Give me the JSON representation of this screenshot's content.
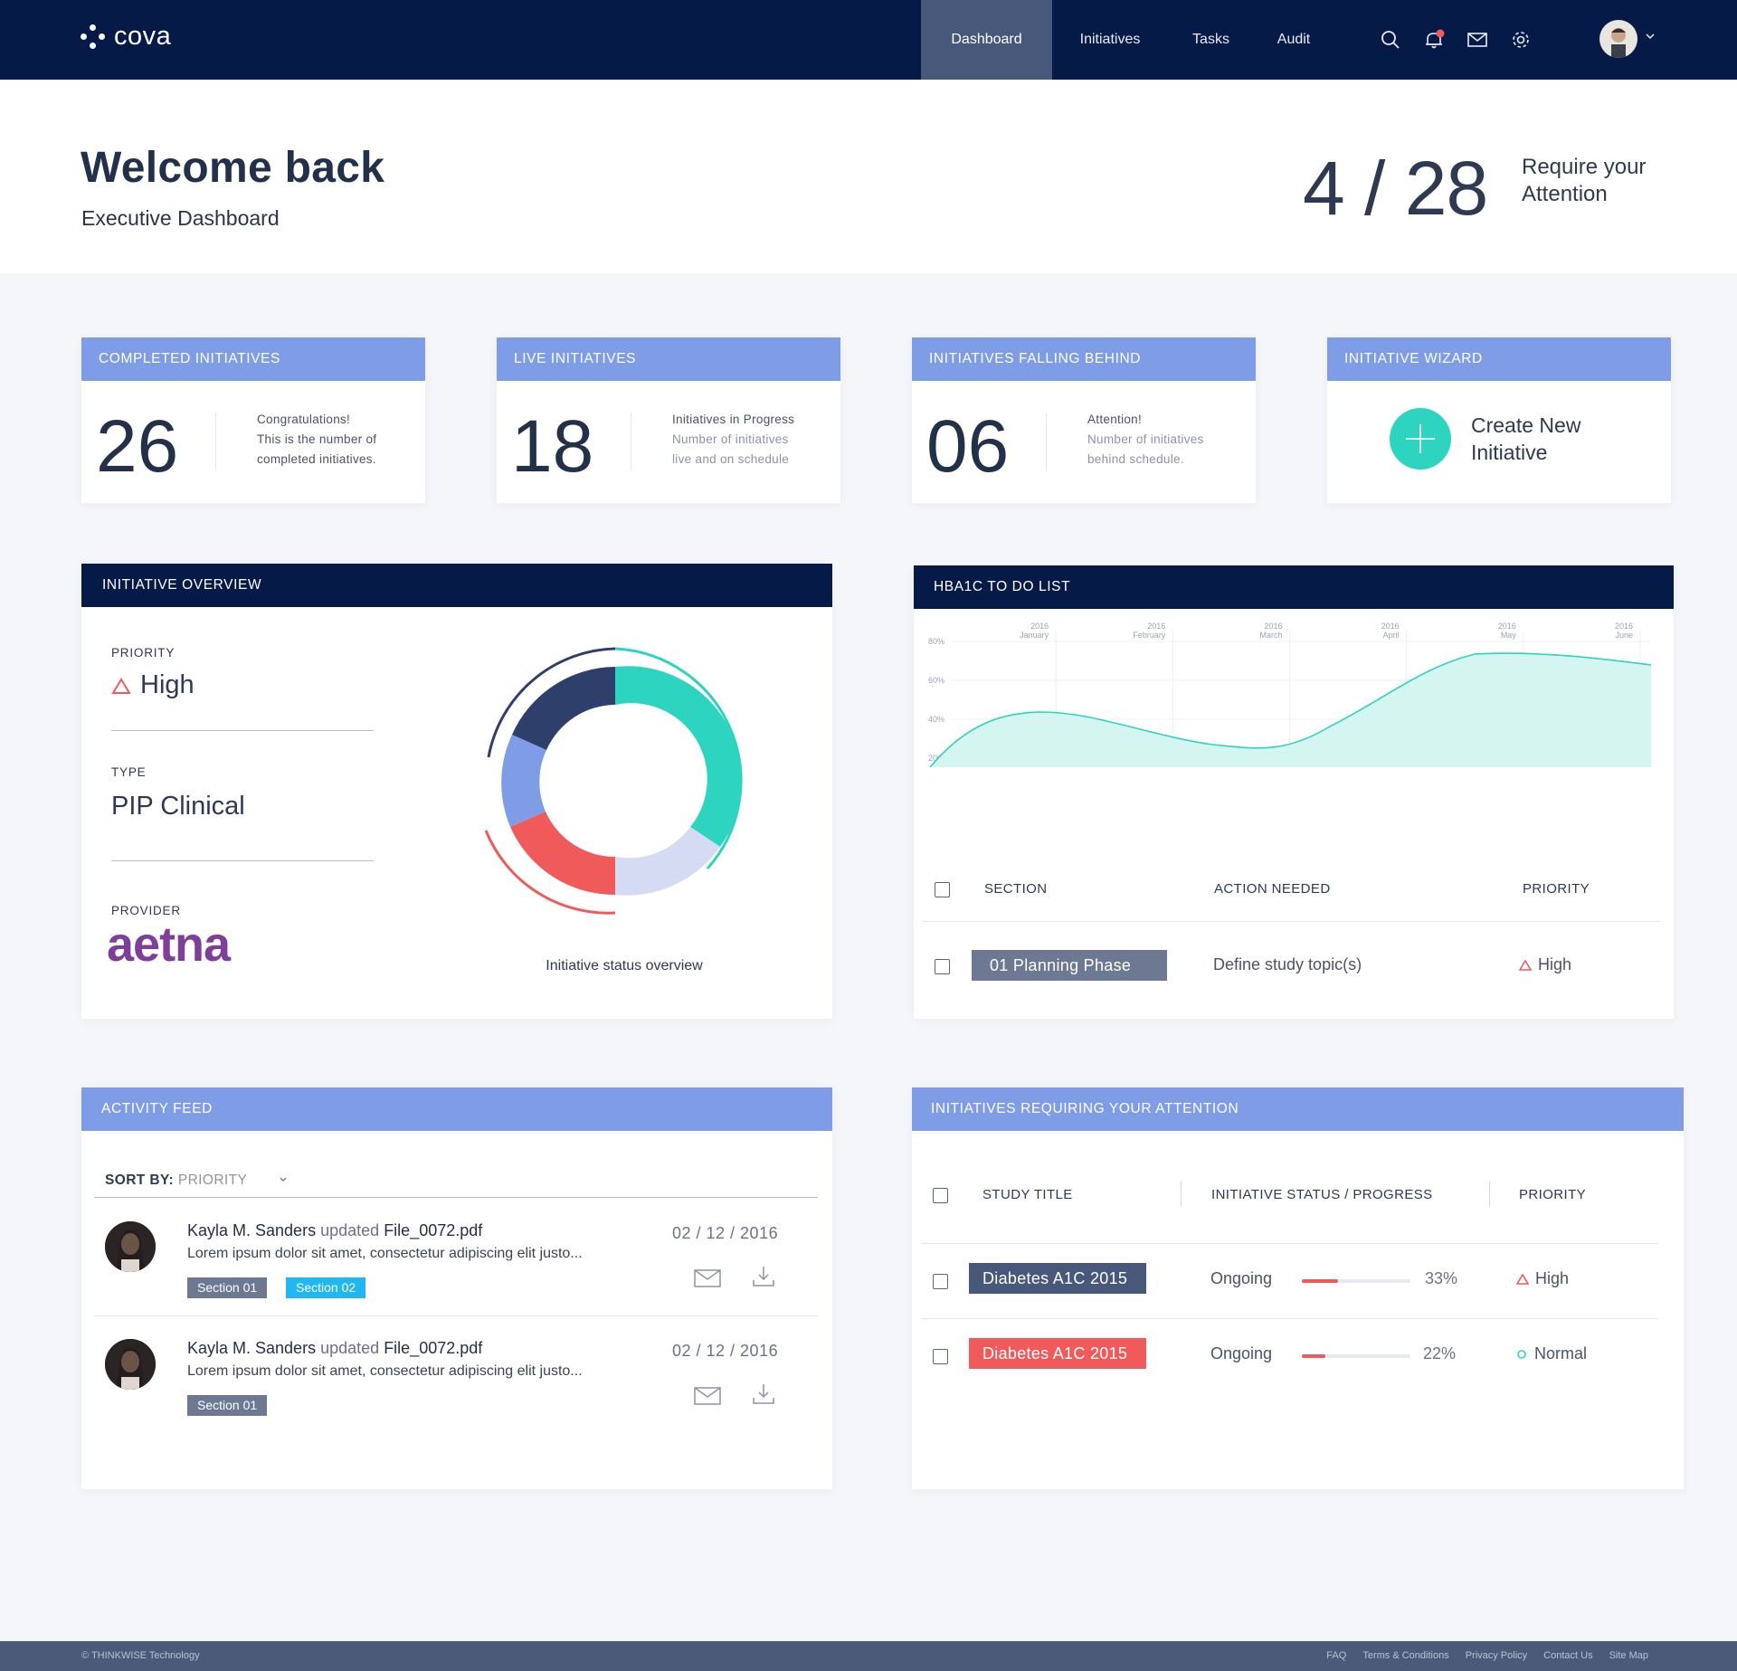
{
  "nav": {
    "brand": "cova",
    "links": [
      "Dashboard",
      "Initiatives",
      "Tasks",
      "Audit"
    ],
    "active": "Dashboard",
    "icons": [
      "search-icon",
      "bell-icon",
      "mail-icon",
      "gear-icon"
    ],
    "notification_color": "#f05a5a"
  },
  "hero": {
    "title": "Welcome back",
    "subtitle": "Executive Dashboard",
    "attention_count": "4 / 28",
    "attention_text": "Require your Attention"
  },
  "stats": [
    {
      "header": "COMPLETED INITIATIVES",
      "value": "26",
      "line1": "Congratulations!",
      "line2": "This is the number of",
      "line3": "completed initiatives."
    },
    {
      "header": "LIVE INITIATIVES",
      "value": "18",
      "line1": "Initiatives in Progress",
      "line2": "Number of initiatives",
      "line3": "live and on schedule"
    },
    {
      "header": "INITIATIVES FALLING BEHIND",
      "value": "06",
      "line1": "Attention!",
      "line2": "Number of initiatives",
      "line3": "behind schedule."
    }
  ],
  "wizard": {
    "header": "INITIATIVE WIZARD",
    "line1": "Create New",
    "line2": "Initiative",
    "accent": "#2dd4bf"
  },
  "overview": {
    "header": "INITIATIVE OVERVIEW",
    "priority_label": "PRIORITY",
    "priority_value": "High",
    "type_label": "TYPE",
    "type_value": "PIP Clinical",
    "provider_label": "PROVIDER",
    "provider_logo": "aetna",
    "caption": "Initiative status overview"
  },
  "todo": {
    "header": "HBA1C TO DO LIST",
    "columns": [
      "SECTION",
      "ACTION NEEDED",
      "PRIORITY"
    ],
    "rows": [
      {
        "section": "01 Planning Phase",
        "action": "Define study topic(s)",
        "priority": "High"
      }
    ]
  },
  "chart_data": {
    "type": "area",
    "x": [
      "2016 January",
      "2016 February",
      "2016 March",
      "2016 April",
      "2016 May",
      "2016 June"
    ],
    "y_ticks": [
      "80%",
      "60%",
      "40%",
      "20%"
    ],
    "ylim": [
      0,
      80
    ],
    "color": "#2dd4bf",
    "grid": true
  },
  "activity": {
    "header": "ACTIVITY FEED",
    "sort_label": "SORT BY:",
    "sort_value": "PRIORITY",
    "items": [
      {
        "user": "Kayla M. Sanders",
        "verb": "updated",
        "file": "File_0072.pdf",
        "text": "Lorem ipsum dolor sit amet, consectetur adipiscing elit justo...",
        "date": "02 / 12 / 2016",
        "tags": [
          "Section 01",
          "Section 02"
        ]
      },
      {
        "user": "Kayla M. Sanders",
        "verb": "updated",
        "file": "File_0072.pdf",
        "text": "Lorem ipsum dolor sit amet, consectetur adipiscing elit justo...",
        "date": "02 / 12 / 2016",
        "tags": [
          "Section 01"
        ]
      }
    ]
  },
  "attention": {
    "header": "INITIATIVES REQUIRING YOUR ATTENTION",
    "columns": [
      "STUDY TITLE",
      "INITIATIVE STATUS / PROGRESS",
      "PRIORITY"
    ],
    "rows": [
      {
        "title": "Diabetes A1C 2015",
        "status": "Ongoing",
        "progress": 33,
        "progress_label": "33%",
        "priority": "High"
      },
      {
        "title": "Diabetes A1C 2015",
        "status": "Ongoing",
        "progress": 22,
        "progress_label": "22%",
        "priority": "Normal"
      }
    ]
  },
  "footer": {
    "copyright": "© THINKWISE Technology",
    "links": [
      "FAQ",
      "Terms & Conditions",
      "Privacy Policy",
      "Contact Us",
      "Site Map"
    ]
  }
}
